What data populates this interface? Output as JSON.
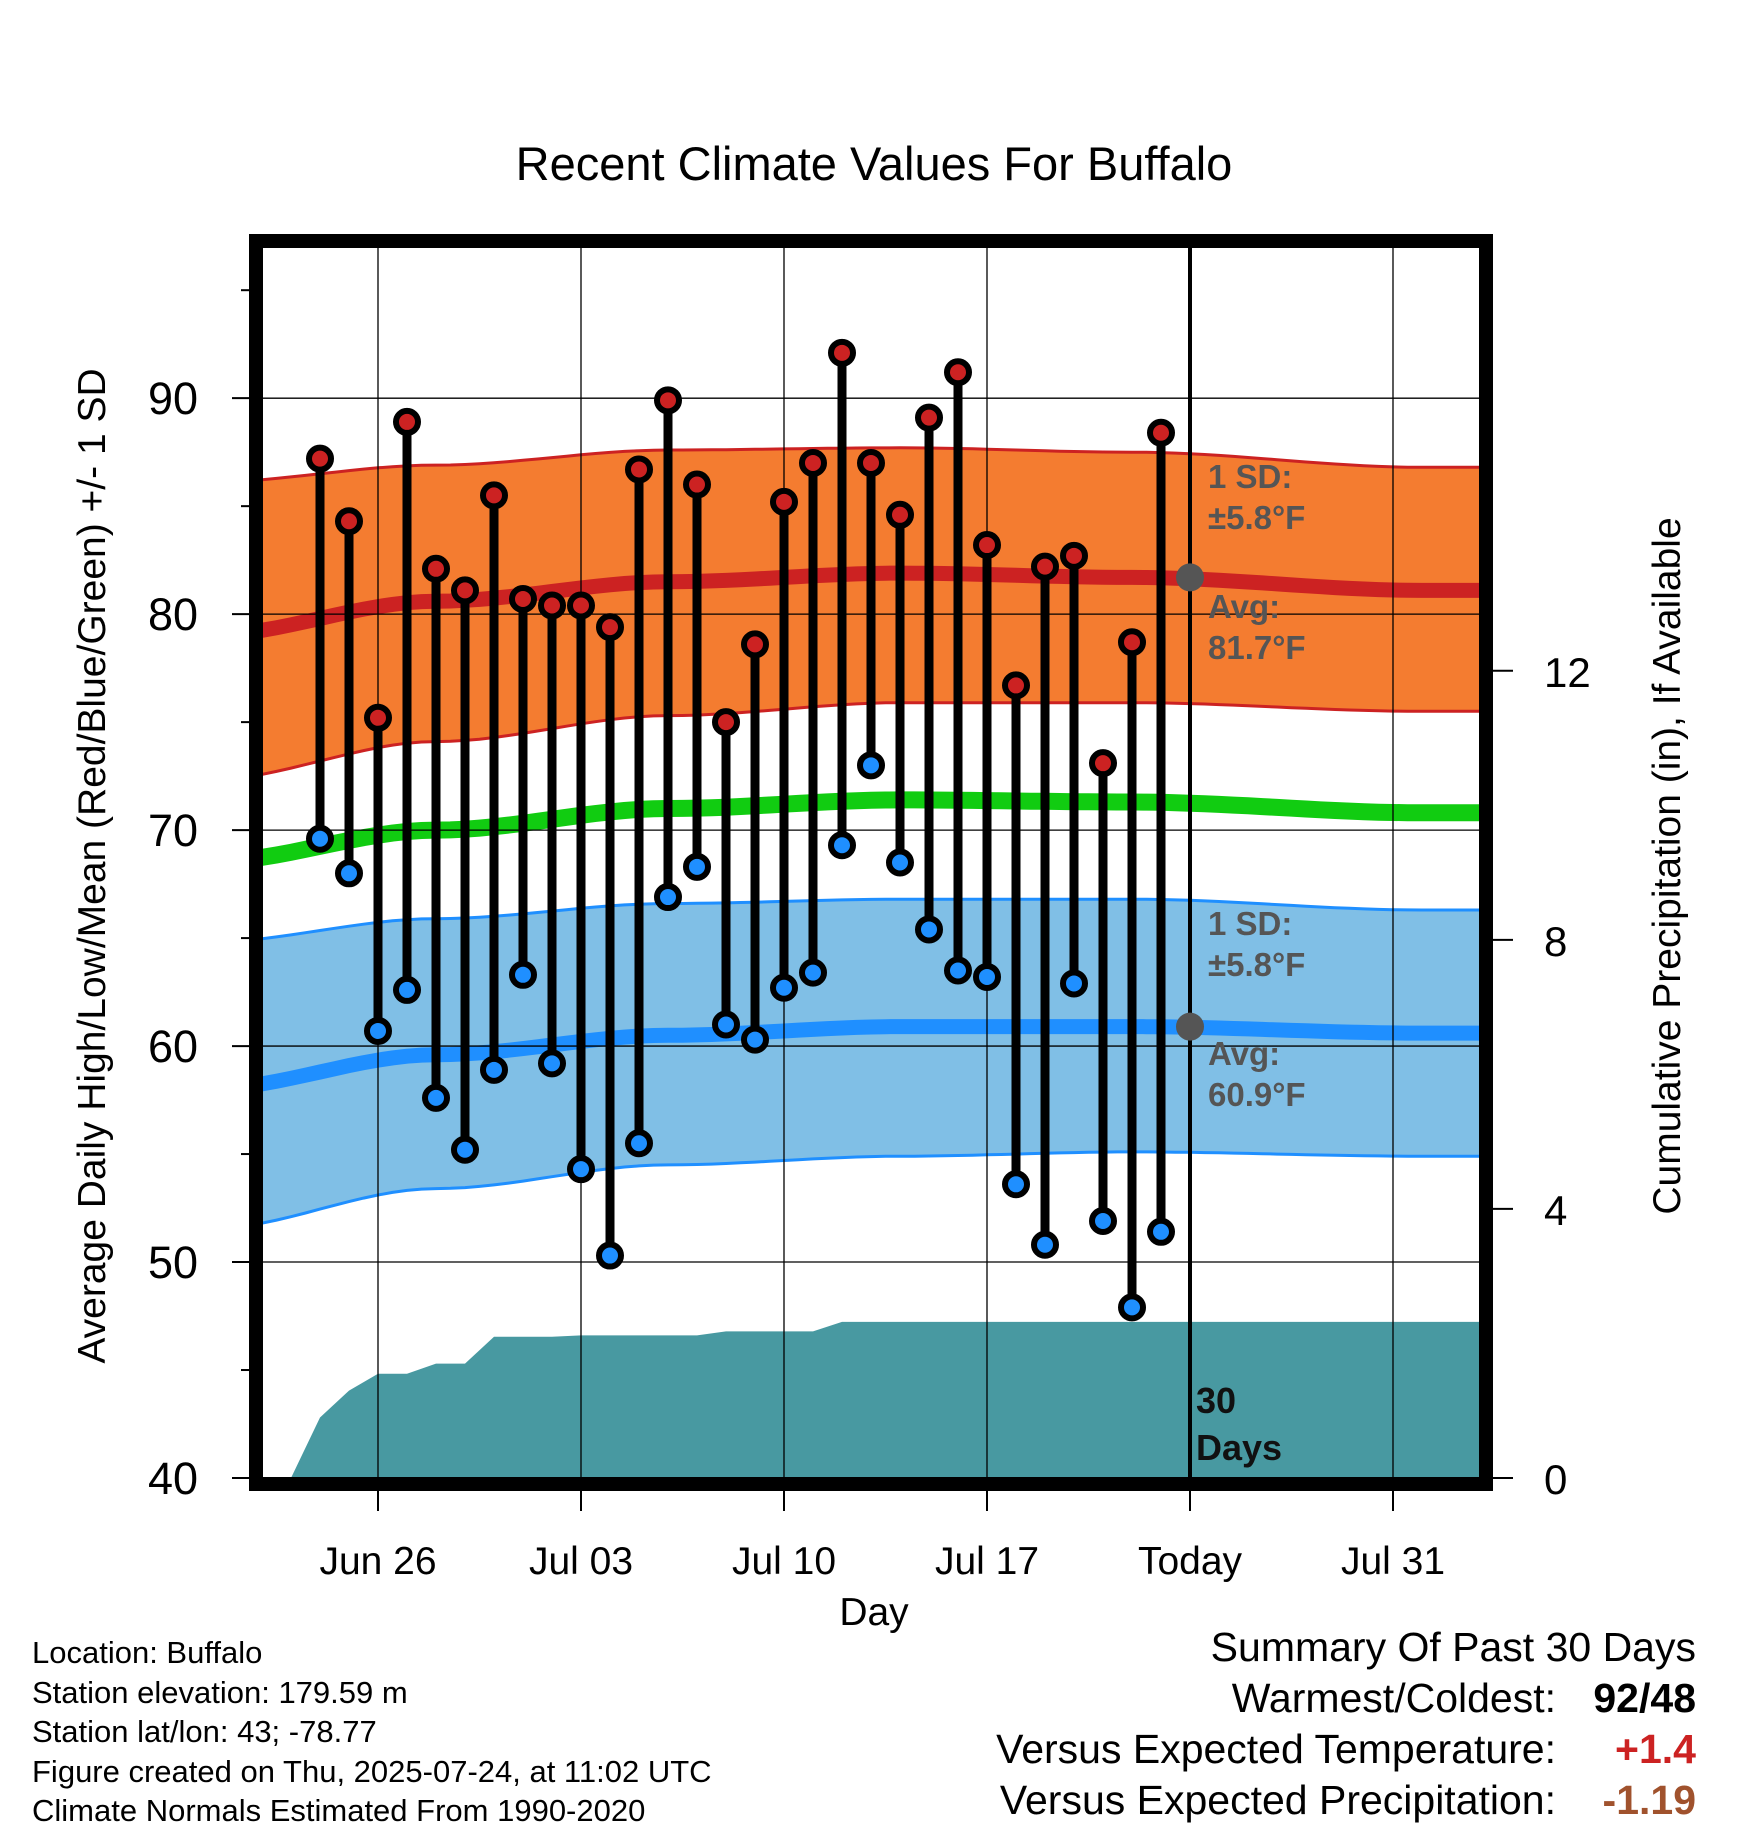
{
  "chart_data": {
    "type": "line",
    "title": "Recent Climate Values For Buffalo",
    "xlabel": "Day",
    "ylabel": "Average Daily High/Low/Mean (Red/Blue/Green) +/- 1 SD",
    "y2label": "Cumulative Precipitation (in), If Available",
    "ylim": [
      40,
      97
    ],
    "y2lim": [
      0,
      18.3
    ],
    "xlim": [
      "2025-06-22",
      "2025-08-03"
    ],
    "yticks": [
      40,
      50,
      60,
      70,
      80,
      90
    ],
    "y2ticks": [
      0,
      4,
      8,
      12
    ],
    "xtick_dates": [
      "2025-06-26",
      "2025-07-03",
      "2025-07-10",
      "2025-07-17",
      "2025-07-24",
      "2025-07-31"
    ],
    "xtick_labels": [
      "Jun 26",
      "Jul 03",
      "Jul 10",
      "Jul 17",
      "Today",
      "Jul 31"
    ],
    "grid": true,
    "today": "2025-07-24",
    "dates": [
      "2025-06-24",
      "2025-06-25",
      "2025-06-26",
      "2025-06-27",
      "2025-06-28",
      "2025-06-29",
      "2025-06-30",
      "2025-07-01",
      "2025-07-02",
      "2025-07-03",
      "2025-07-04",
      "2025-07-05",
      "2025-07-06",
      "2025-07-07",
      "2025-07-08",
      "2025-07-09",
      "2025-07-10",
      "2025-07-11",
      "2025-07-12",
      "2025-07-13",
      "2025-07-14",
      "2025-07-15",
      "2025-07-16",
      "2025-07-17",
      "2025-07-18",
      "2025-07-19",
      "2025-07-20",
      "2025-07-21",
      "2025-07-22",
      "2025-07-23"
    ],
    "series": [
      {
        "name": "High",
        "color": "#cc2222",
        "values": [
          87.2,
          84.3,
          75.2,
          88.9,
          82.1,
          81.1,
          85.5,
          80.7,
          80.4,
          80.4,
          79.4,
          86.7,
          89.9,
          86.0,
          75.0,
          78.6,
          85.2,
          87.0,
          92.1,
          87.0,
          84.6,
          89.1,
          91.2,
          83.2,
          76.7,
          82.2,
          82.7,
          73.1,
          78.7,
          88.4
        ]
      },
      {
        "name": "Low",
        "color": "#1f8fff",
        "values": [
          69.6,
          68.0,
          60.7,
          62.6,
          57.6,
          55.2,
          58.9,
          63.3,
          59.2,
          54.3,
          50.3,
          55.5,
          66.9,
          68.3,
          61.0,
          60.3,
          62.7,
          63.4,
          69.3,
          73.0,
          68.5,
          65.4,
          63.5,
          63.2,
          53.6,
          50.8,
          62.9,
          51.9,
          47.9,
          51.4
        ]
      }
    ],
    "normal_high": {
      "avg_text": "81.7",
      "sd_text": "5.8",
      "mean": [
        [
          -2,
          79.0
        ],
        [
          6,
          80.6
        ],
        [
          14,
          81.5
        ],
        [
          22,
          81.9
        ],
        [
          30,
          81.7
        ],
        [
          40,
          81.1
        ]
      ],
      "upper": [
        [
          -2,
          86.1
        ],
        [
          6,
          86.9
        ],
        [
          14,
          87.6
        ],
        [
          22,
          87.7
        ],
        [
          30,
          87.5
        ],
        [
          40,
          86.8
        ]
      ],
      "lower": [
        [
          -2,
          72.3
        ],
        [
          6,
          74.1
        ],
        [
          14,
          75.3
        ],
        [
          22,
          75.9
        ],
        [
          30,
          75.9
        ],
        [
          40,
          75.5
        ]
      ]
    },
    "normal_low": {
      "avg_text": "60.9",
      "sd_text": "5.8",
      "mean": [
        [
          -2,
          58.0
        ],
        [
          6,
          59.6
        ],
        [
          14,
          60.5
        ],
        [
          22,
          60.9
        ],
        [
          30,
          60.9
        ],
        [
          40,
          60.6
        ]
      ],
      "upper": [
        [
          -2,
          64.8
        ],
        [
          6,
          65.9
        ],
        [
          14,
          66.6
        ],
        [
          22,
          66.8
        ],
        [
          30,
          66.8
        ],
        [
          40,
          66.3
        ]
      ],
      "lower": [
        [
          -2,
          51.5
        ],
        [
          6,
          53.4
        ],
        [
          14,
          54.5
        ],
        [
          22,
          54.9
        ],
        [
          30,
          55.1
        ],
        [
          40,
          54.9
        ]
      ]
    },
    "normal_mean": [
      [
        -2,
        68.5
      ],
      [
        6,
        70.0
      ],
      [
        14,
        71.0
      ],
      [
        22,
        71.4
      ],
      [
        30,
        71.3
      ],
      [
        40,
        70.8
      ]
    ],
    "precip_cumulative": {
      "dates": [
        "2025-06-23",
        "2025-06-24",
        "2025-06-25",
        "2025-06-26",
        "2025-06-27",
        "2025-06-28",
        "2025-06-29",
        "2025-06-30",
        "2025-07-01",
        "2025-07-02",
        "2025-07-03",
        "2025-07-04",
        "2025-07-05",
        "2025-07-06",
        "2025-07-07",
        "2025-07-08",
        "2025-07-09",
        "2025-07-10",
        "2025-07-11",
        "2025-07-12",
        "2025-07-13",
        "2025-07-20",
        "2025-07-24",
        "2025-08-03"
      ],
      "values": [
        0,
        0.9,
        1.3,
        1.55,
        1.55,
        1.7,
        1.7,
        2.1,
        2.1,
        2.1,
        2.12,
        2.12,
        2.12,
        2.12,
        2.12,
        2.18,
        2.18,
        2.18,
        2.18,
        2.32,
        2.32,
        2.32,
        2.32,
        2.32
      ]
    },
    "labels": {
      "sd_prefix": "1 SD:",
      "avg_prefix": "Avg:",
      "days_number": "30",
      "days_word": "Days"
    }
  },
  "colors": {
    "high_band": "#f47c30",
    "low_band": "#80bfe6",
    "high_line": "#cc2222",
    "low_line": "#1f8fff",
    "mean_line": "#11cc11",
    "precip": "#4899a1",
    "annot": "#555555",
    "warm": "#cc2222",
    "precip_anomaly": "#a0522d"
  },
  "meta": {
    "location": "Location: Buffalo",
    "elevation": "Station elevation: 179.59 m",
    "latlon": "Station lat/lon: 43; -78.77",
    "created": "Figure created on Thu, 2025-07-24, at 11:02 UTC",
    "normals": "Climate Normals Estimated From 1990-2020"
  },
  "summary": {
    "title": "Summary Of Past 30 Days",
    "warm_cold_label": "Warmest/Coldest:",
    "warmest": "92",
    "sep": "/",
    "coldest": "48",
    "temp_label": "Versus Expected Temperature:",
    "temp_value": "+1.4",
    "precip_label": "Versus Expected Precipitation:",
    "precip_value": "-1.19"
  }
}
